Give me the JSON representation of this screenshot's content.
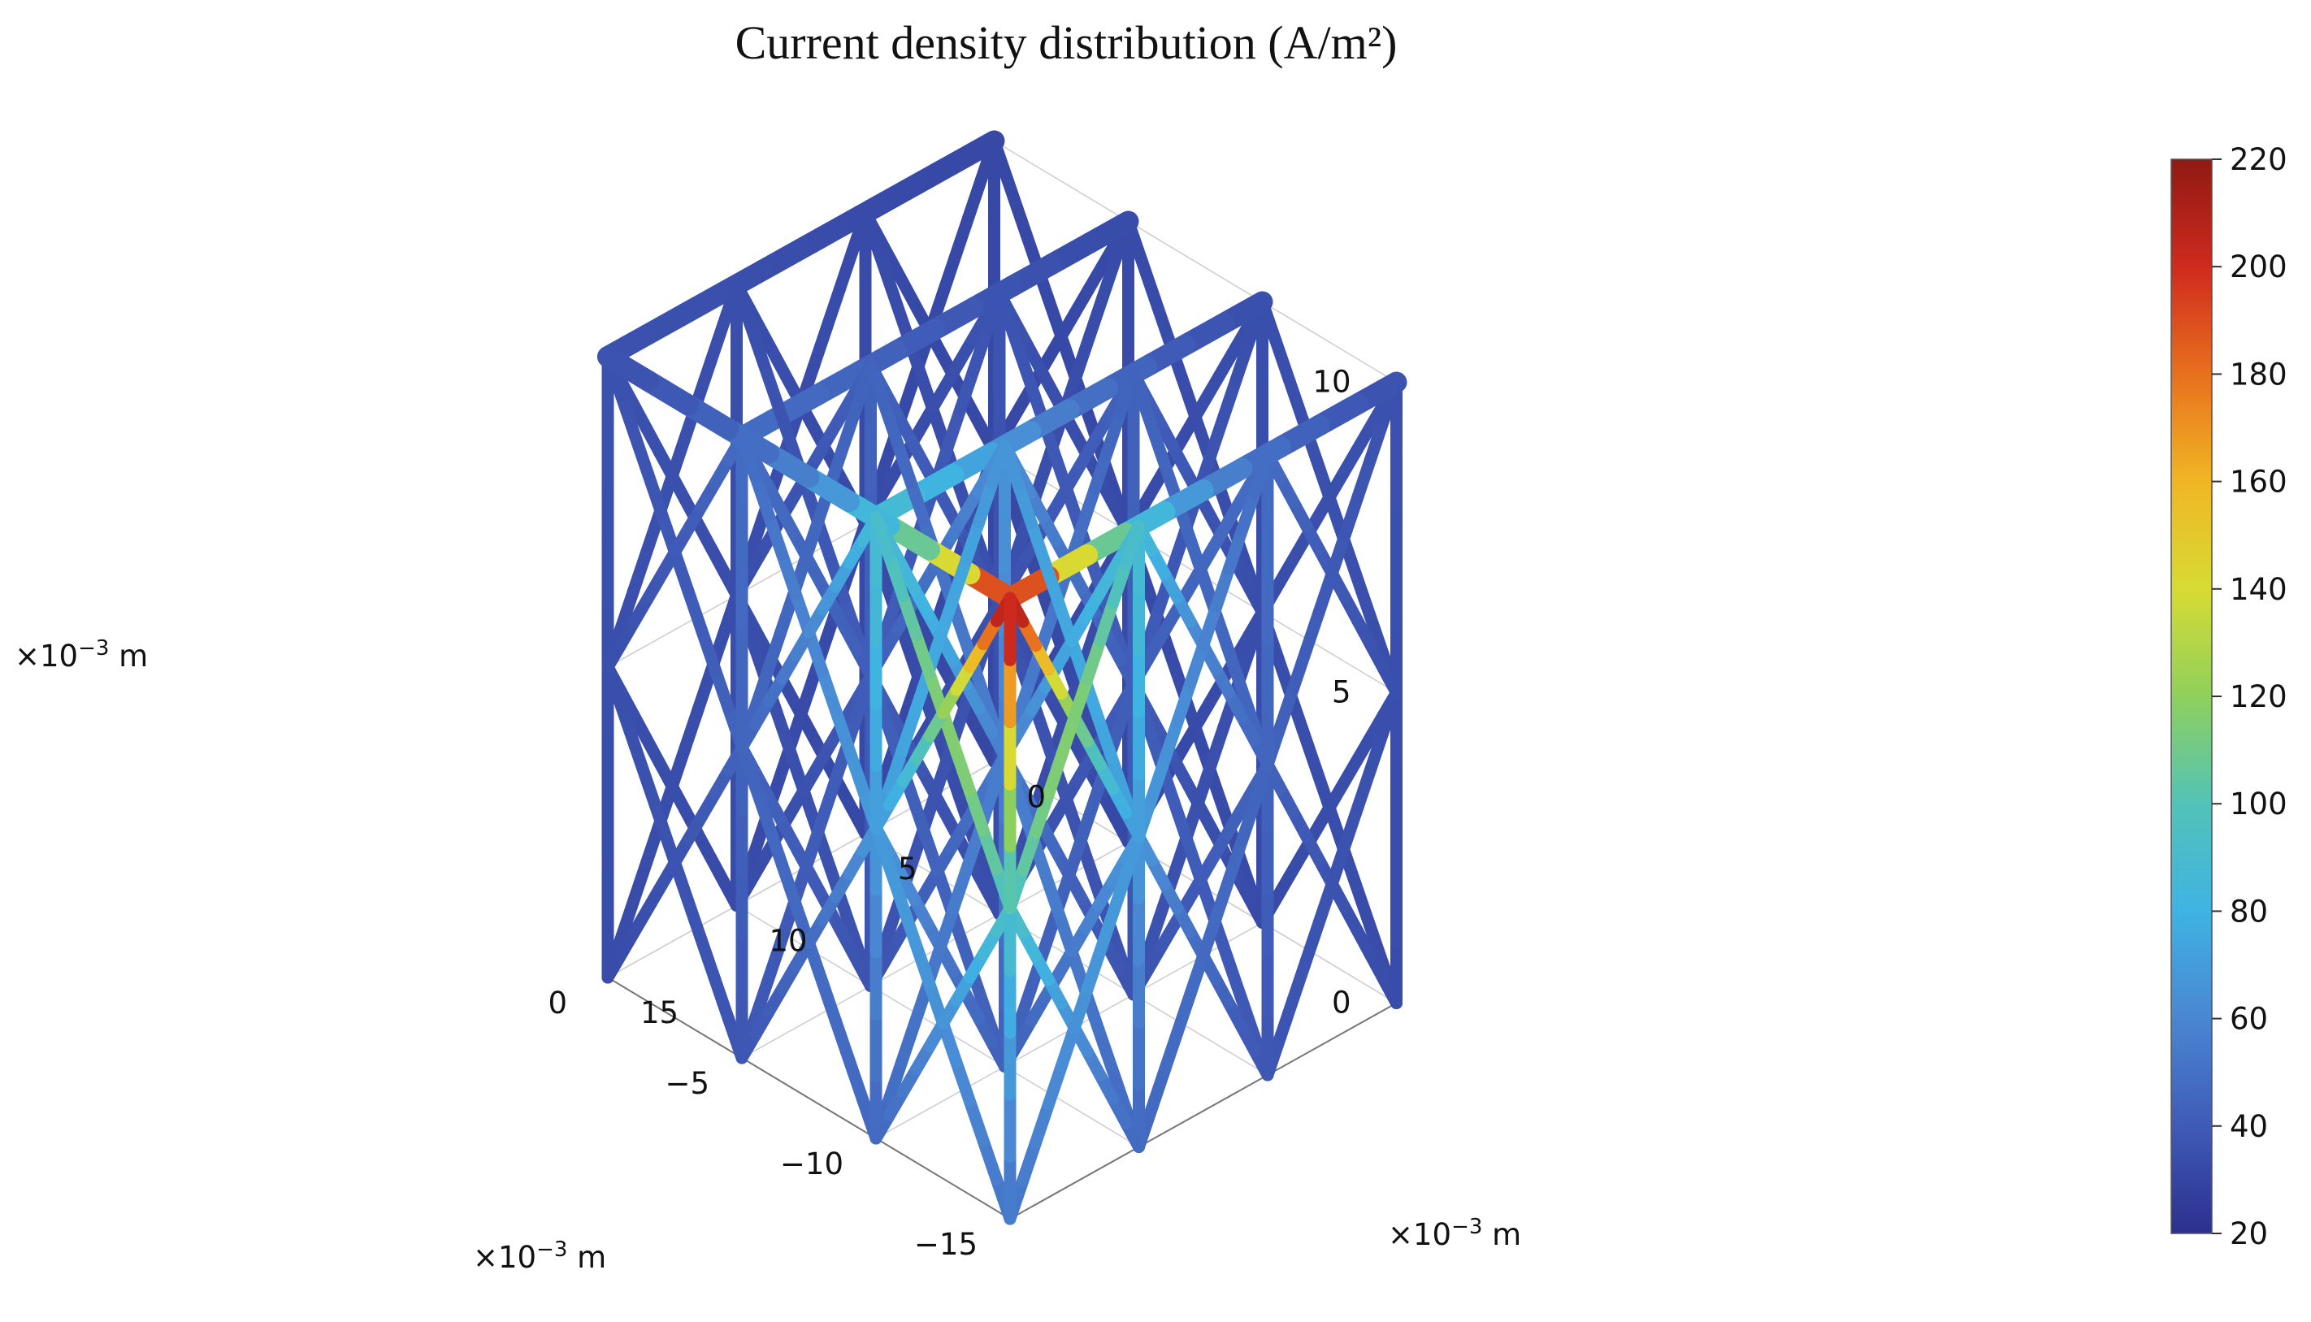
{
  "chart_data": {
    "type": "3d-surface",
    "title": "Current density distribution (A/m²)",
    "axes": {
      "x": {
        "unit_label": "×10⁻³ m",
        "ticks": [
          "0",
          "-5",
          "-10",
          "-15"
        ],
        "range": [
          -15,
          0
        ]
      },
      "y": {
        "unit_label": "×10⁻³ m",
        "ticks": [
          "0",
          "5",
          "10",
          "15"
        ],
        "range": [
          0,
          15
        ]
      },
      "z": {
        "unit_label": "×10⁻³ m",
        "ticks": [
          "0",
          "5",
          "10"
        ],
        "range": [
          0,
          10
        ]
      }
    },
    "colorbar": {
      "min": 20,
      "max": 220,
      "ticks": [
        "20",
        "40",
        "60",
        "80",
        "100",
        "120",
        "140",
        "160",
        "180",
        "200",
        "220"
      ],
      "colormap": [
        "#2c2f8e",
        "#3f5bb7",
        "#4a86d2",
        "#3fb3e3",
        "#52c3b7",
        "#8fd05c",
        "#d7db33",
        "#f0b624",
        "#e8701e",
        "#cf2a1d",
        "#8f1a14"
      ]
    },
    "structure": "lattice",
    "current_density_peak": 220,
    "current_density_low": 30
  }
}
